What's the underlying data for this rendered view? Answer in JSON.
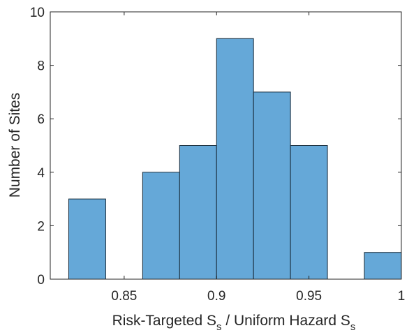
{
  "chart_data": {
    "type": "histogram",
    "xlabel": [
      "Risk-Targeted S",
      "s",
      " / Uniform Hazard S",
      "s"
    ],
    "ylabel": "Number of Sites",
    "bins": [
      0.82,
      0.84,
      0.86,
      0.88,
      0.9,
      0.92,
      0.94,
      0.96,
      0.98,
      1.0
    ],
    "values": [
      3,
      0,
      4,
      5,
      9,
      7,
      5,
      0,
      1
    ],
    "color": "#65a8d8",
    "edgecolor": "#1c3040",
    "xlim": [
      0.81,
      1
    ],
    "xticks": [
      0.85,
      0.9,
      0.95,
      1
    ],
    "ylim": [
      0,
      10
    ],
    "yticks": [
      0,
      2,
      4,
      6,
      8,
      10
    ]
  }
}
